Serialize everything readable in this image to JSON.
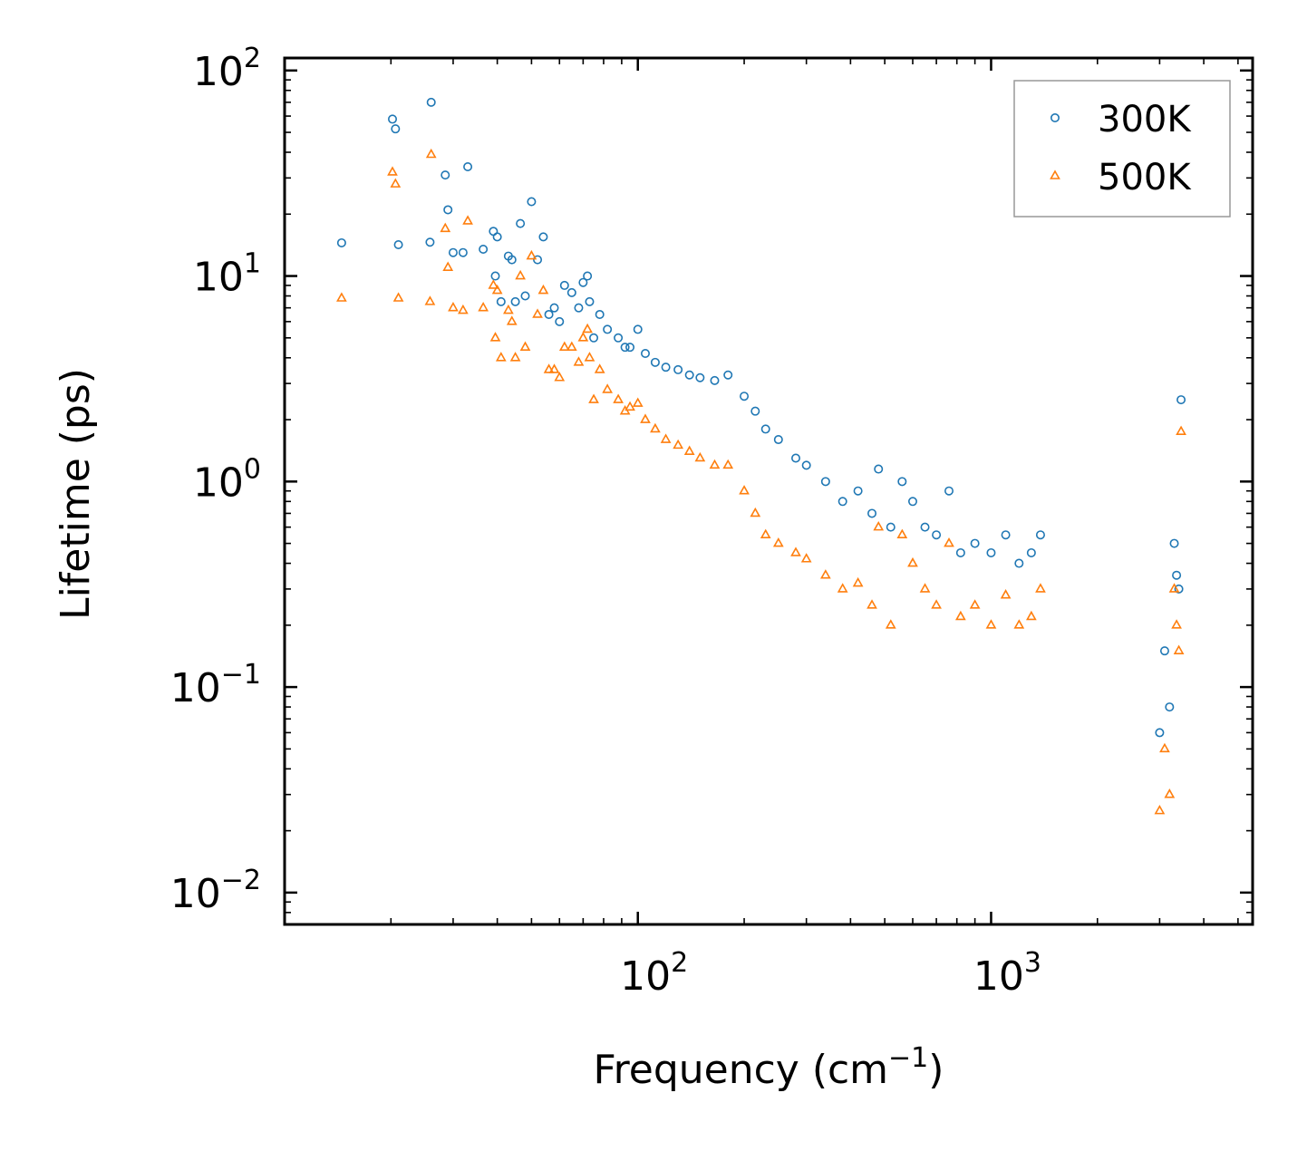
{
  "chart_data": {
    "type": "scatter",
    "xscale": "log",
    "yscale": "log",
    "xlabel": "Frequency (cm",
    "xlabel_sup": "−1",
    "xlabel_end": ")",
    "ylabel": "Lifetime (ps)",
    "xlim": [
      10,
      5500
    ],
    "ylim": [
      0.007,
      115
    ],
    "x_ticks": [
      {
        "value": 100,
        "base": "10",
        "exp": "2"
      },
      {
        "value": 1000,
        "base": "10",
        "exp": "3"
      }
    ],
    "y_ticks": [
      {
        "value": 100,
        "base": "10",
        "exp": "2"
      },
      {
        "value": 10,
        "base": "10",
        "exp": "1"
      },
      {
        "value": 1,
        "base": "10",
        "exp": "0"
      },
      {
        "value": 0.1,
        "base": "10",
        "exp": "−1"
      },
      {
        "value": 0.01,
        "base": "10",
        "exp": "−2"
      }
    ],
    "legend_position": "top-right",
    "series": [
      {
        "name": "300K",
        "marker": "circle",
        "color": "#1f77b4",
        "x": [
          14.5,
          20.2,
          20.6,
          21.0,
          25.8,
          26.0,
          28.5,
          29.0,
          30.0,
          32.0,
          33.0,
          36.5,
          39.0,
          39.5,
          40.0,
          41.0,
          43.0,
          44.0,
          45.0,
          46.5,
          48.0,
          50.0,
          52.0,
          54.0,
          56.0,
          58.0,
          60.0,
          62.0,
          65.0,
          68.0,
          70.0,
          72.0,
          73.0,
          75.0,
          78.0,
          82.0,
          88.0,
          92.0,
          95.0,
          100.0,
          105.0,
          112.0,
          120.0,
          130.0,
          140.0,
          150.0,
          165.0,
          180.0,
          200.0,
          215.0,
          230.0,
          250.0,
          280.0,
          300.0,
          340.0,
          380.0,
          420.0,
          460.0,
          480.0,
          520.0,
          560.0,
          600.0,
          650.0,
          700.0,
          760.0,
          820.0,
          900.0,
          1000.0,
          1100.0,
          1200.0,
          1300.0,
          1380.0,
          3000.0,
          3100.0,
          3200.0,
          3300.0,
          3350.0,
          3400.0,
          3450.0
        ],
        "y": [
          14.5,
          58.0,
          52.0,
          14.2,
          14.6,
          70.0,
          31.0,
          21.0,
          13.0,
          13.0,
          34.0,
          13.5,
          16.5,
          10.0,
          15.5,
          7.5,
          12.5,
          12.0,
          7.5,
          18.0,
          8.0,
          23.0,
          12.0,
          15.5,
          6.5,
          7.0,
          6.0,
          9.0,
          8.3,
          7.0,
          9.3,
          10.0,
          7.5,
          5.0,
          6.5,
          5.5,
          5.0,
          4.5,
          4.5,
          5.5,
          4.2,
          3.8,
          3.6,
          3.5,
          3.3,
          3.2,
          3.1,
          3.3,
          2.6,
          2.2,
          1.8,
          1.6,
          1.3,
          1.2,
          1.0,
          0.8,
          0.9,
          0.7,
          1.15,
          0.6,
          1.0,
          0.8,
          0.6,
          0.55,
          0.9,
          0.45,
          0.5,
          0.45,
          0.55,
          0.4,
          0.45,
          0.55,
          0.06,
          0.15,
          0.08,
          0.5,
          0.35,
          0.3,
          2.5
        ]
      },
      {
        "name": "500K",
        "marker": "triangle",
        "color": "#ff7f0e",
        "x": [
          14.5,
          20.2,
          20.6,
          21.0,
          25.8,
          26.0,
          28.5,
          29.0,
          30.0,
          32.0,
          33.0,
          36.5,
          39.0,
          39.5,
          40.0,
          41.0,
          43.0,
          44.0,
          45.0,
          46.5,
          48.0,
          50.0,
          52.0,
          54.0,
          56.0,
          58.0,
          60.0,
          62.0,
          65.0,
          68.0,
          70.0,
          72.0,
          73.0,
          75.0,
          78.0,
          82.0,
          88.0,
          92.0,
          95.0,
          100.0,
          105.0,
          112.0,
          120.0,
          130.0,
          140.0,
          150.0,
          165.0,
          180.0,
          200.0,
          215.0,
          230.0,
          250.0,
          280.0,
          300.0,
          340.0,
          380.0,
          420.0,
          460.0,
          480.0,
          520.0,
          560.0,
          600.0,
          650.0,
          700.0,
          760.0,
          820.0,
          900.0,
          1000.0,
          1100.0,
          1200.0,
          1300.0,
          1380.0,
          3000.0,
          3100.0,
          3200.0,
          3300.0,
          3350.0,
          3400.0,
          3450.0
        ],
        "y": [
          7.8,
          32.0,
          28.0,
          7.8,
          7.5,
          39.0,
          17.0,
          11.0,
          7.0,
          6.8,
          18.5,
          7.0,
          9.0,
          5.0,
          8.5,
          4.0,
          6.8,
          6.0,
          4.0,
          10.0,
          4.5,
          12.5,
          6.5,
          8.5,
          3.5,
          3.5,
          3.2,
          4.5,
          4.5,
          3.8,
          5.0,
          5.5,
          4.0,
          2.5,
          3.5,
          2.8,
          2.5,
          2.2,
          2.3,
          2.4,
          2.0,
          1.8,
          1.6,
          1.5,
          1.4,
          1.3,
          1.2,
          1.2,
          0.9,
          0.7,
          0.55,
          0.5,
          0.45,
          0.42,
          0.35,
          0.3,
          0.32,
          0.25,
          0.6,
          0.2,
          0.55,
          0.4,
          0.3,
          0.25,
          0.5,
          0.22,
          0.25,
          0.2,
          0.28,
          0.2,
          0.22,
          0.3,
          0.025,
          0.05,
          0.03,
          0.3,
          0.2,
          0.15,
          1.75
        ]
      }
    ]
  }
}
